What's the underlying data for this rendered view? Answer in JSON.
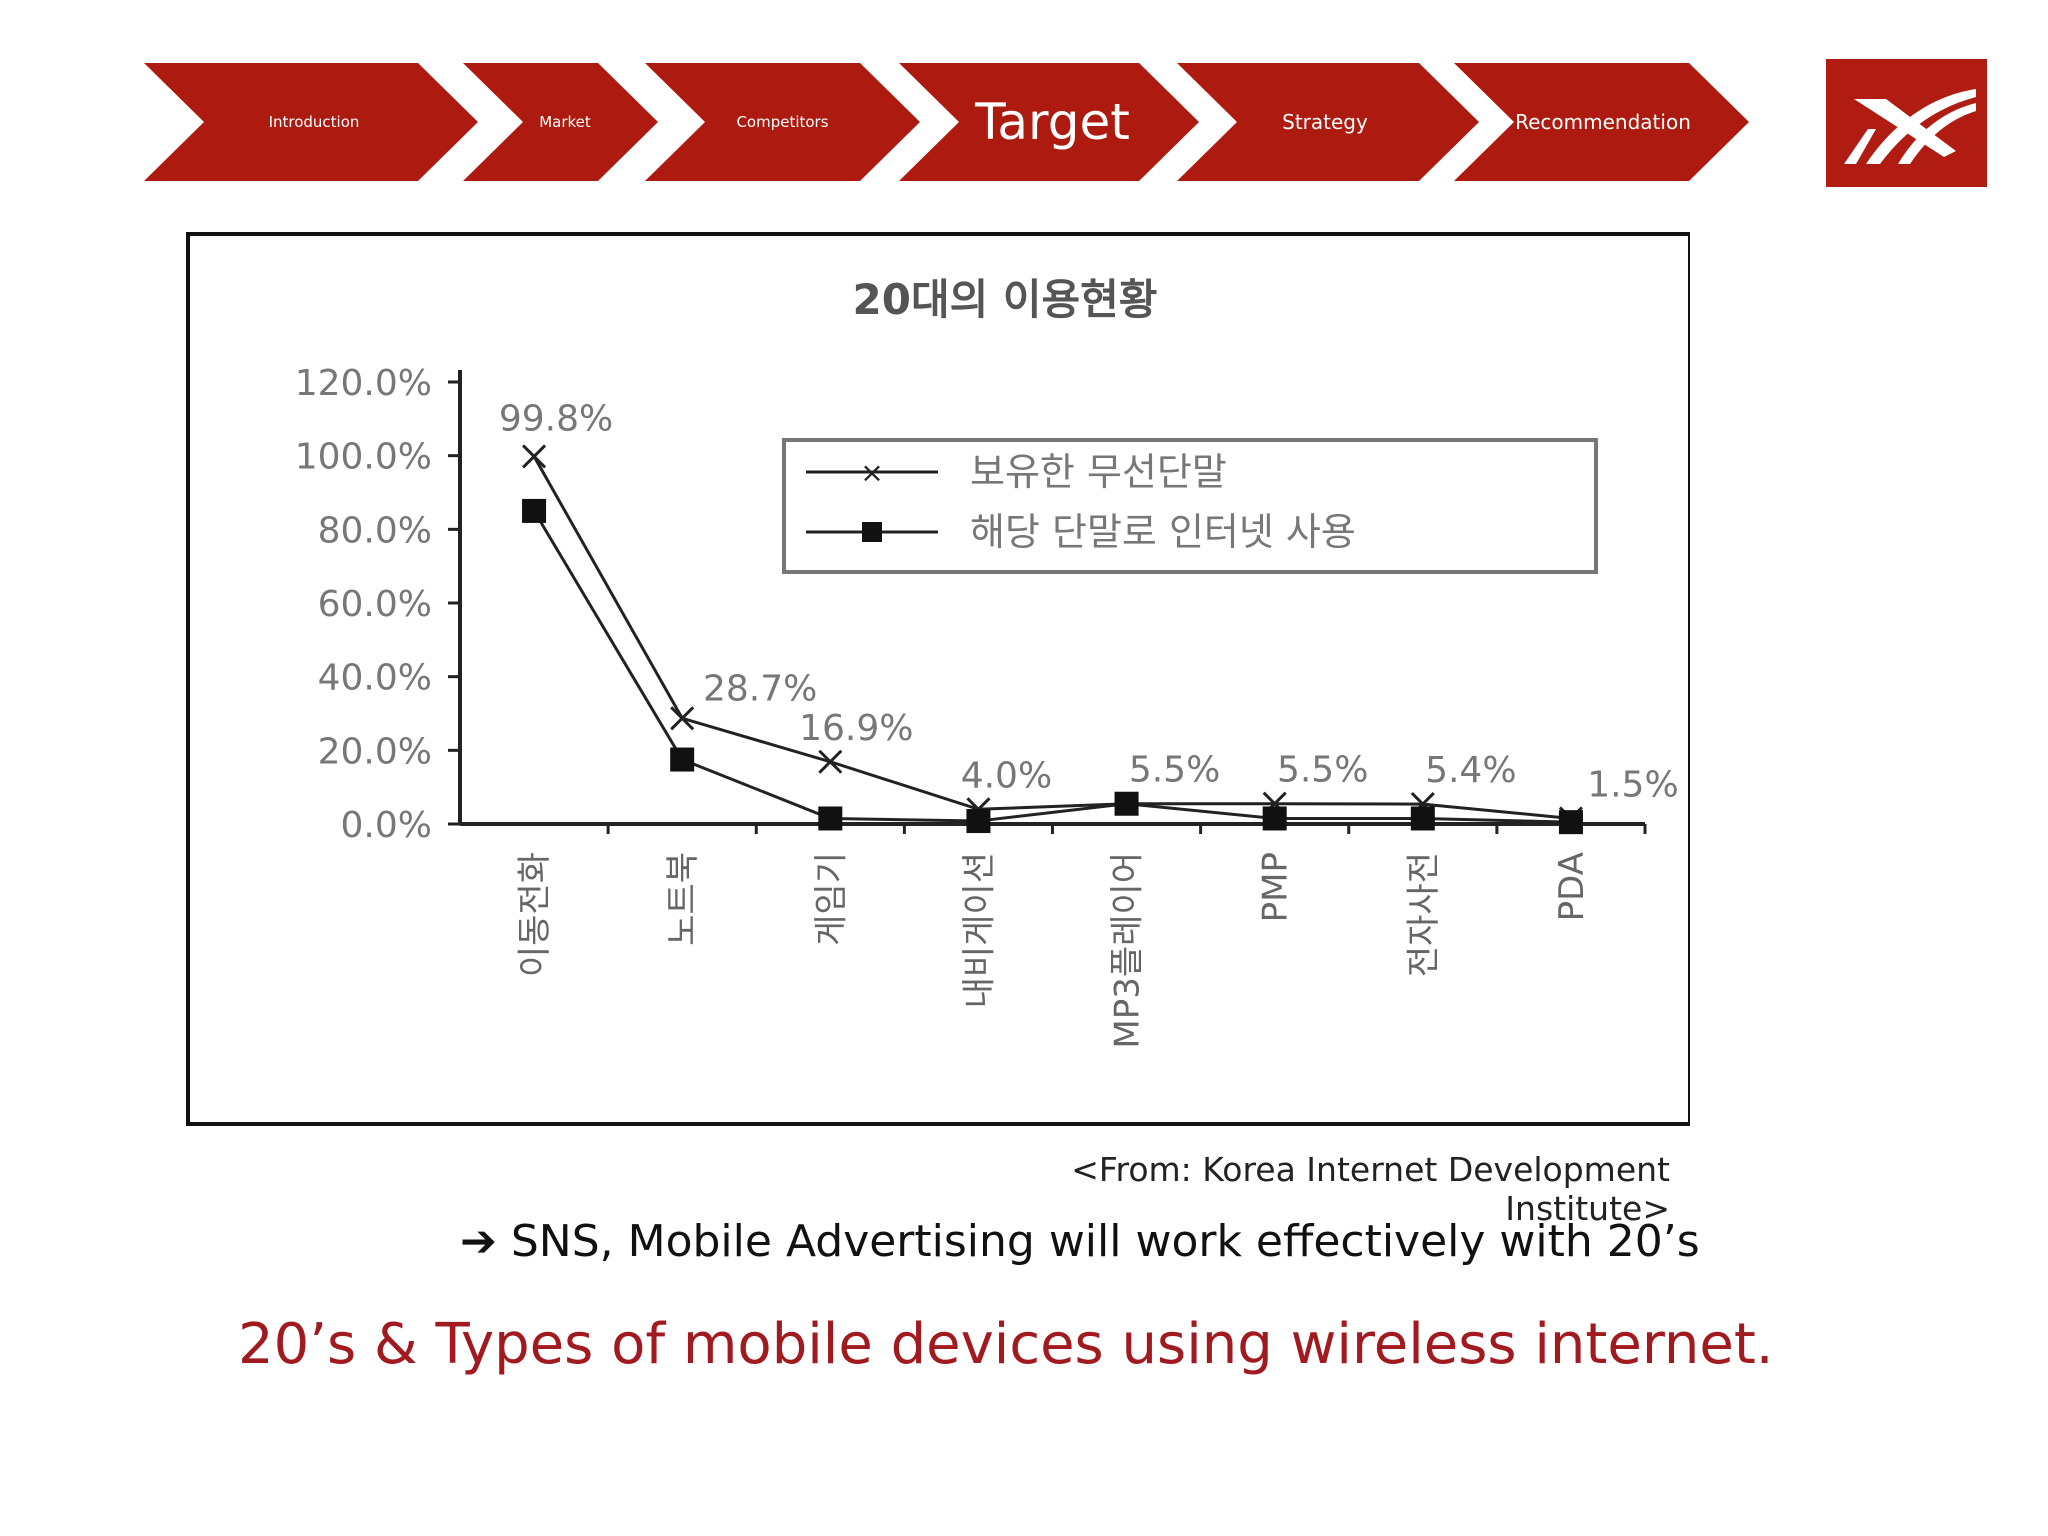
{
  "nav": {
    "steps": [
      {
        "label": "Introduction",
        "active": false
      },
      {
        "label": "Market",
        "active": false
      },
      {
        "label": "Competitors",
        "active": false
      },
      {
        "label": "Target",
        "active": true
      },
      {
        "label": "Strategy",
        "active": false
      },
      {
        "label": "Recommendation",
        "active": false
      }
    ],
    "color": "#ad1a10"
  },
  "logo": {
    "icon": "brand-logo-icon",
    "color": "#b01c12"
  },
  "chart_data": {
    "type": "line",
    "title": "20대의 이용현황",
    "categories": [
      "이동전화",
      "노트북",
      "게임기",
      "내비게이션",
      "MP3플레이어",
      "PMP",
      "전자사전",
      "PDA"
    ],
    "series": [
      {
        "name": "보유한 무선단말",
        "marker": "x",
        "values": [
          99.8,
          28.7,
          16.9,
          4.0,
          5.5,
          5.5,
          5.4,
          1.5
        ]
      },
      {
        "name": "해당 단말로 인터넷 사용",
        "marker": "square",
        "values": [
          85.0,
          17.5,
          1.5,
          0.8,
          5.5,
          1.5,
          1.5,
          0.5
        ]
      }
    ],
    "data_labels": [
      "99.8%",
      "28.7%",
      "16.9%",
      "4.0%",
      "5.5%",
      "5.5%",
      "5.4%",
      "1.5%"
    ],
    "yticks": [
      "120.0%",
      "100.0%",
      "80.0%",
      "60.0%",
      "40.0%",
      "20.0%",
      "0.0%"
    ],
    "ylim": [
      0,
      120
    ],
    "xlabel": "",
    "ylabel": "",
    "legend_position": "top-right"
  },
  "source": "<From: Korea Internet Development Institute>",
  "conclusion": {
    "arrow": "➔",
    "text": "SNS, Mobile Advertising will work effectively with 20’s"
  },
  "headline": "20’s & Types of mobile devices using wireless internet."
}
